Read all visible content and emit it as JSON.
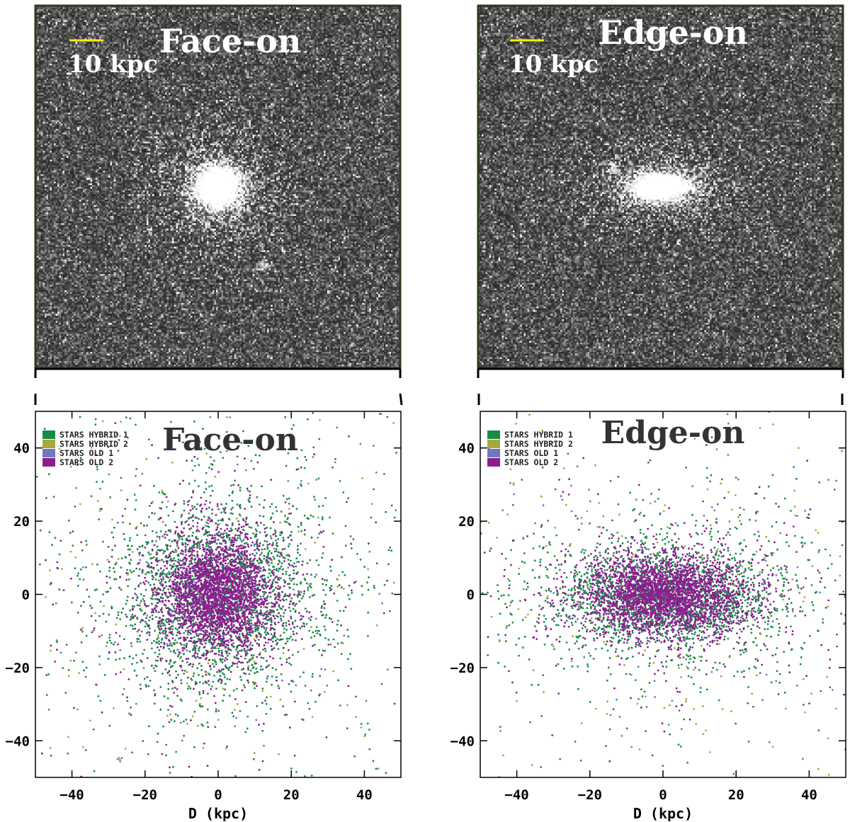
{
  "chart_data": [
    {
      "panel": "top-left",
      "type": "image",
      "title": "Face-on",
      "scale_bar_label": "10 kpc",
      "scale_bar_kpc": 10,
      "field_kpc": [
        -50,
        50
      ],
      "image_model": {
        "center_x": 0,
        "center_y": 0,
        "sigma_x": 4.2,
        "sigma_y": 4.0,
        "halo_x": 12,
        "halo_y": 11,
        "satellite": [
          12,
          -22
        ]
      },
      "colors": {
        "background": "#575757",
        "scale_bar": "#ffee00",
        "text": "#ffffff",
        "frame": "#2b3a22"
      }
    },
    {
      "panel": "top-right",
      "type": "image",
      "title": "Edge-on",
      "scale_bar_label": "10 kpc",
      "scale_bar_kpc": 10,
      "field_kpc": [
        -50,
        50
      ],
      "image_model": {
        "center_x": 0,
        "center_y": 0,
        "sigma_x": 5.5,
        "sigma_y": 2.6,
        "halo_x": 13,
        "halo_y": 7,
        "satellite": [
          -13,
          5
        ]
      },
      "colors": {
        "background": "#575757",
        "scale_bar": "#ffee00",
        "text": "#ffffff",
        "frame": "#2b3a22"
      }
    },
    {
      "panel": "bottom-left",
      "type": "scatter",
      "title": "Face-on",
      "xlabel": "D (kpc)",
      "ylabel": "",
      "xlim": [
        -50,
        50
      ],
      "ylim": [
        -50,
        50
      ],
      "xticks": [
        -40,
        -20,
        0,
        20,
        40
      ],
      "yticks": [
        -40,
        -20,
        0,
        20,
        40
      ],
      "xtick_labels": [
        "−40",
        "−20",
        "0",
        "20",
        "40"
      ],
      "ytick_labels": [
        "−40",
        "−20",
        "0",
        "20",
        "40"
      ],
      "legend": [
        "STARS HYBRID 1",
        "STARS HYBRID 2",
        "STARS OLD 1",
        "STARS OLD 2"
      ],
      "legend_position": "top-left",
      "series": [
        {
          "name": "STARS HYBRID 1",
          "color": "#1a8a4a",
          "center": [
            0,
            0
          ],
          "sigma": [
            13,
            13
          ],
          "halo_fraction": 0.22,
          "count": 2600
        },
        {
          "name": "STARS HYBRID 2",
          "color": "#a5a83a",
          "center": [
            0,
            0
          ],
          "sigma": [
            22,
            22
          ],
          "halo_fraction": 0.7,
          "count": 280
        },
        {
          "name": "STARS OLD 1",
          "color": "#6d78bf",
          "center": [
            0,
            0
          ],
          "sigma": [
            20,
            20
          ],
          "halo_fraction": 0.7,
          "count": 240
        },
        {
          "name": "STARS OLD 2",
          "color": "#8b1e8e",
          "center": [
            0,
            0
          ],
          "sigma": [
            8,
            8
          ],
          "halo_fraction": 0.12,
          "count": 3000
        }
      ]
    },
    {
      "panel": "bottom-right",
      "type": "scatter",
      "title": "Edge-on",
      "xlabel": "D (kpc)",
      "ylabel": "",
      "xlim": [
        -50,
        50
      ],
      "ylim": [
        -50,
        50
      ],
      "xticks": [
        -40,
        -20,
        0,
        20,
        40
      ],
      "yticks": [
        -40,
        -20,
        0,
        20,
        40
      ],
      "xtick_labels": [
        "−40",
        "−20",
        "0",
        "20",
        "40"
      ],
      "ytick_labels": [
        "−40",
        "−20",
        "0",
        "20",
        "40"
      ],
      "legend": [
        "STARS HYBRID 1",
        "STARS HYBRID 2",
        "STARS OLD 1",
        "STARS OLD 2"
      ],
      "legend_position": "top-left",
      "series": [
        {
          "name": "STARS HYBRID 1",
          "color": "#1a8a4a",
          "center": [
            0,
            -1
          ],
          "sigma": [
            15,
            7
          ],
          "halo_fraction": 0.22,
          "count": 2400
        },
        {
          "name": "STARS HYBRID 2",
          "color": "#a5a83a",
          "center": [
            5,
            0
          ],
          "sigma": [
            26,
            18
          ],
          "halo_fraction": 0.7,
          "count": 300
        },
        {
          "name": "STARS OLD 1",
          "color": "#6d78bf",
          "center": [
            10,
            5
          ],
          "sigma": [
            24,
            18
          ],
          "halo_fraction": 0.7,
          "count": 260
        },
        {
          "name": "STARS OLD 2",
          "color": "#8b1e8e",
          "center": [
            0,
            0
          ],
          "sigma": [
            11,
            5.5
          ],
          "halo_fraction": 0.12,
          "count": 3000
        }
      ]
    }
  ]
}
